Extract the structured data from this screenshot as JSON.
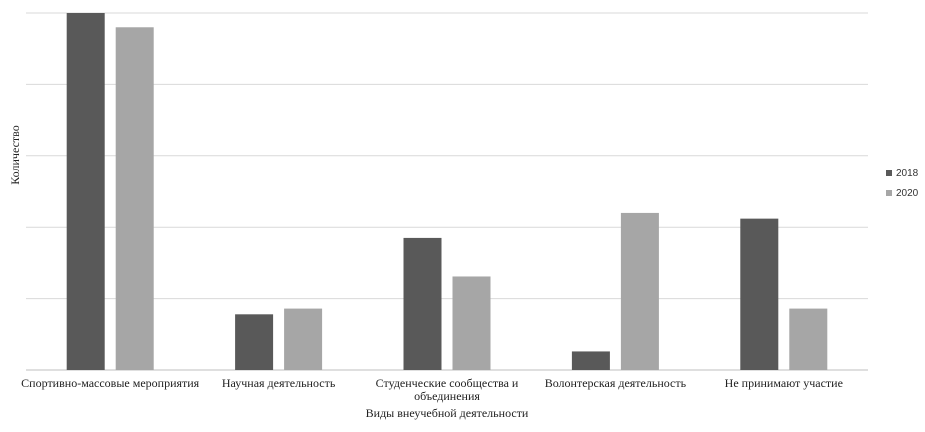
{
  "chart_data": {
    "type": "bar",
    "xlabel": "Виды внеучебной деятельности",
    "ylabel": "Количество",
    "ylim": [
      0,
      50
    ],
    "grid": true,
    "legend_position": "right",
    "categories": [
      [
        "Спортивно-массовые мероприятия"
      ],
      [
        "Научная деятельность"
      ],
      [
        "Студенческие сообщества и",
        "объединения"
      ],
      [
        "Волонтерская деятельность"
      ],
      [
        "Не принимают участие"
      ]
    ],
    "series": [
      {
        "name": "2018",
        "color": "#595959",
        "values": [
          50,
          7.8,
          18.5,
          2.6,
          21.2
        ]
      },
      {
        "name": "2020",
        "color": "#a6a6a6",
        "values": [
          48,
          8.6,
          13.1,
          22,
          8.6
        ]
      }
    ]
  }
}
